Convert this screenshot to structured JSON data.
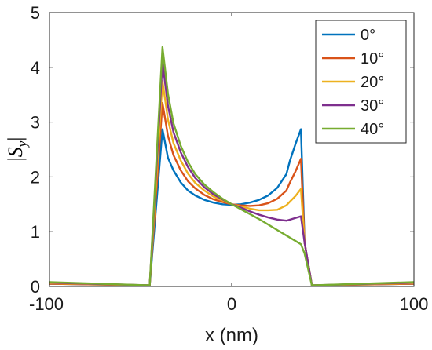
{
  "chart_data": {
    "type": "line",
    "xlabel": "x (nm)",
    "ylabel": {
      "bar_left": "|",
      "symbol": "S",
      "subscript": "y",
      "bar_right": "|"
    },
    "xlim": [
      -100,
      100
    ],
    "ylim": [
      0,
      5
    ],
    "xticks": [
      -100,
      0,
      100
    ],
    "xtick_labels": [
      "-100",
      "0",
      "100"
    ],
    "yticks": [
      0,
      1,
      2,
      3,
      4,
      5
    ],
    "ytick_labels": [
      "0",
      "1",
      "2",
      "3",
      "4",
      "5"
    ],
    "grid": false,
    "legend_position": "top-right",
    "series": [
      {
        "name": "0°",
        "color": "#0072BD",
        "x": [
          -100,
          -45,
          -38,
          -35,
          -32,
          -28,
          -24,
          -20,
          -15,
          -10,
          -5,
          0,
          5,
          10,
          15,
          20,
          25,
          30,
          32,
          35,
          38,
          40,
          44,
          100
        ],
        "y": [
          0.05,
          0.02,
          2.87,
          2.35,
          2.12,
          1.9,
          1.75,
          1.66,
          1.58,
          1.53,
          1.5,
          1.49,
          1.5,
          1.53,
          1.58,
          1.66,
          1.8,
          2.05,
          2.3,
          2.6,
          2.87,
          0.8,
          0.02,
          0.05
        ]
      },
      {
        "name": "10°",
        "color": "#D95319",
        "x": [
          -100,
          -45,
          -38,
          -35,
          -32,
          -28,
          -24,
          -20,
          -15,
          -10,
          -5,
          0,
          5,
          10,
          15,
          20,
          25,
          30,
          32,
          35,
          38,
          40,
          44,
          100
        ],
        "y": [
          0.05,
          0.02,
          3.35,
          2.75,
          2.4,
          2.12,
          1.92,
          1.79,
          1.67,
          1.59,
          1.54,
          1.5,
          1.48,
          1.47,
          1.48,
          1.52,
          1.6,
          1.75,
          1.9,
          2.1,
          2.33,
          0.8,
          0.02,
          0.05
        ]
      },
      {
        "name": "20°",
        "color": "#EDB120",
        "x": [
          -100,
          -45,
          -38,
          -35,
          -32,
          -28,
          -24,
          -20,
          -15,
          -10,
          -5,
          0,
          5,
          10,
          15,
          20,
          25,
          30,
          32,
          35,
          38,
          40,
          44,
          100
        ],
        "y": [
          0.06,
          0.02,
          3.75,
          3.05,
          2.62,
          2.3,
          2.06,
          1.89,
          1.75,
          1.64,
          1.57,
          1.5,
          1.46,
          1.42,
          1.39,
          1.39,
          1.4,
          1.48,
          1.55,
          1.65,
          1.78,
          0.8,
          0.02,
          0.06
        ]
      },
      {
        "name": "30°",
        "color": "#7E2F8E",
        "x": [
          -100,
          -45,
          -38,
          -35,
          -32,
          -28,
          -24,
          -20,
          -15,
          -10,
          -5,
          0,
          5,
          10,
          15,
          20,
          25,
          30,
          32,
          35,
          38,
          40,
          44,
          100
        ],
        "y": [
          0.07,
          0.02,
          4.1,
          3.3,
          2.82,
          2.45,
          2.18,
          1.98,
          1.81,
          1.68,
          1.59,
          1.5,
          1.44,
          1.37,
          1.31,
          1.26,
          1.22,
          1.2,
          1.22,
          1.25,
          1.28,
          0.8,
          0.02,
          0.07
        ]
      },
      {
        "name": "40°",
        "color": "#77AC30",
        "x": [
          -100,
          -45,
          -38,
          -35,
          -32,
          -28,
          -24,
          -20,
          -15,
          -10,
          -5,
          0,
          5,
          10,
          15,
          20,
          25,
          30,
          32,
          35,
          38,
          40,
          44,
          100
        ],
        "y": [
          0.08,
          0.02,
          4.37,
          3.52,
          2.98,
          2.57,
          2.27,
          2.05,
          1.86,
          1.72,
          1.6,
          1.5,
          1.41,
          1.32,
          1.23,
          1.13,
          1.03,
          0.93,
          0.89,
          0.83,
          0.77,
          0.6,
          0.02,
          0.08
        ]
      }
    ]
  }
}
